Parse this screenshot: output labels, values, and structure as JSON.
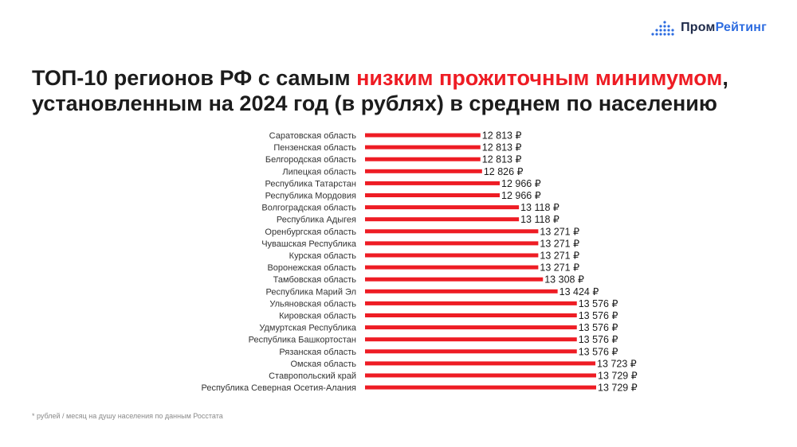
{
  "brand": {
    "name_part1": "Пром",
    "name_part2": "Рейтинг",
    "accent_color": "#2d6ce0",
    "dark_color": "#1e2a4a"
  },
  "title": {
    "line1_before": "ТОП-10 регионов РФ с самым ",
    "line1_highlight": "низким прожиточным минимумом",
    "line1_after": ",",
    "line2": "установленным на 2024 год (в рублях) в среднем по населению",
    "highlight_color": "#ee1c24"
  },
  "footnote": "* рублей / месяц на душу населения по данным Росстата",
  "chart_data": {
    "type": "bar",
    "orientation": "horizontal",
    "bar_color": "#ee1c24",
    "value_suffix": " ₽",
    "categories": [
      "Саратовская область",
      "Пензенская область",
      "Белгородская область",
      "Липецкая область",
      "Республика Татарстан",
      "Республика Мордовия",
      "Волгоградская область",
      "Республика Адыгея",
      "Оренбургская область",
      "Чувашская Республика",
      "Курская область",
      "Воронежская область",
      "Тамбовская область",
      "Республика Марий Эл",
      "Ульяновская область",
      "Кировская область",
      "Удмуртская Республика",
      "Республика Башкортостан",
      "Рязанская область",
      "Омская область",
      "Ставропольский край",
      "Республика Северная Осетия-Алания"
    ],
    "values": [
      12813,
      12813,
      12813,
      12826,
      12966,
      12966,
      13118,
      13118,
      13271,
      13271,
      13271,
      13271,
      13308,
      13424,
      13576,
      13576,
      13576,
      13576,
      13576,
      13723,
      13729,
      13729
    ],
    "value_labels": [
      "12 813 ₽",
      "12 813 ₽",
      "12 813 ₽",
      "12 826 ₽",
      "12 966 ₽",
      "12 966 ₽",
      "13 118 ₽",
      "13 118 ₽",
      "13 271 ₽",
      "13 271 ₽",
      "13 271 ₽",
      "13 271 ₽",
      "13 308 ₽",
      "13 424 ₽",
      "13 576 ₽",
      "13 576 ₽",
      "13 576 ₽",
      "13 576 ₽",
      "13 576 ₽",
      "13 723 ₽",
      "13 729 ₽",
      "13 729 ₽"
    ],
    "xlim": [
      11900,
      13729
    ],
    "grid": false,
    "legend": "none"
  }
}
